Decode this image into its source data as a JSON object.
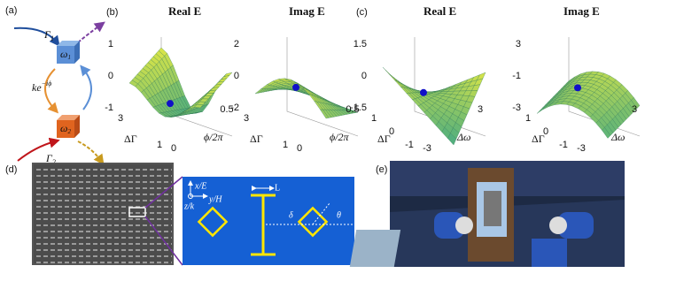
{
  "panel_a": {
    "label": "(a)",
    "gamma1": "Γ",
    "gamma1_sub": "1",
    "omega1": "ω",
    "omega1_sub": "1",
    "coupling": "ke",
    "coupling_sup": "−iϕ",
    "omega2": "ω",
    "omega2_sub": "2",
    "gamma2": "Γ",
    "gamma2_sub": "2"
  },
  "panel_b": {
    "label": "(b)",
    "plots": [
      {
        "title": "Real E",
        "z_ticks": [
          "1",
          "0",
          "-1"
        ],
        "y_ticks": [
          "3",
          "1"
        ],
        "x_ticks": [
          "0",
          "0.5"
        ],
        "y_label": "ΔΓ",
        "x_label": "ϕ/2π"
      },
      {
        "title": "Imag E",
        "z_ticks": [
          "2",
          "0",
          "-2"
        ],
        "y_ticks": [
          "3",
          "1"
        ],
        "x_ticks": [
          "0",
          "0.5"
        ],
        "y_label": "ΔΓ",
        "x_label": "ϕ/2π"
      }
    ]
  },
  "panel_c": {
    "label": "(c)",
    "plots": [
      {
        "title": "Real E",
        "z_ticks": [
          "1.5",
          "0",
          "-1.5"
        ],
        "y_ticks": [
          "1",
          "0",
          "-1"
        ],
        "x_ticks": [
          "-3",
          "3"
        ],
        "y_label": "ΔΓ",
        "x_label": "Δω"
      },
      {
        "title": "Imag E",
        "z_ticks": [
          "3",
          "-1",
          "-3"
        ],
        "y_ticks": [
          "1",
          "0",
          "-1"
        ],
        "x_ticks": [
          "-3",
          "3"
        ],
        "y_label": "ΔΓ",
        "x_label": "Δω"
      }
    ]
  },
  "panel_d": {
    "label": "(d)",
    "x_axis": "x/E",
    "y_axis": "y/H",
    "z_axis": "z/k",
    "length": "L",
    "offset": "δ",
    "angle": "θ"
  },
  "panel_e": {
    "label": "(e)"
  }
}
